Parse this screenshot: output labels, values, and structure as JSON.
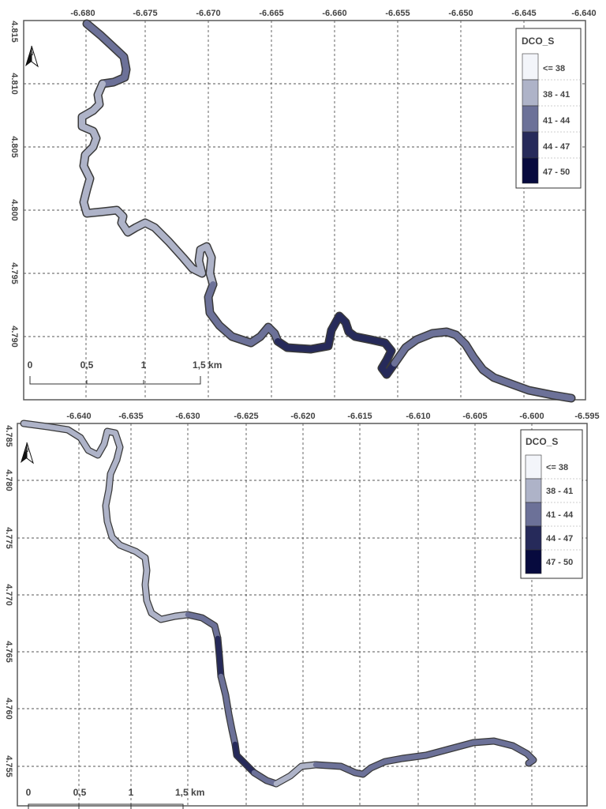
{
  "colors": {
    "frame": "#5a5a5a",
    "grid": "#555555",
    "river_outline": "#3a3a3a",
    "classes": [
      "#f3f5fa",
      "#aeb3c8",
      "#6c7198",
      "#262a5a",
      "#070a3e"
    ]
  },
  "maps": [
    {
      "x_ticks": [
        "-6.680",
        "-6.675",
        "-6.670",
        "-6.665",
        "-6.660",
        "-6.655",
        "-6.650",
        "-6.645",
        "-6.640"
      ],
      "y_ticks": [
        "4.815",
        "4.810",
        "4.805",
        "4.800",
        "4.795",
        "4.790"
      ],
      "north_icon": "north-arrow-icon",
      "north_label": "N",
      "scale_bar": {
        "labels": [
          "0",
          "0,5",
          "1",
          "1,5 km"
        ]
      },
      "legend": {
        "title": "DCO_S",
        "items": [
          {
            "label": "<= 38",
            "color": "#f3f5fa"
          },
          {
            "label": "38 - 41",
            "color": "#aeb3c8"
          },
          {
            "label": "41 - 44",
            "color": "#6c7198"
          },
          {
            "label": "44 - 47",
            "color": "#262a5a"
          },
          {
            "label": "47 - 50",
            "color": "#070a3e"
          }
        ]
      },
      "river_segments": [
        {
          "class": 2,
          "points": [
            [
              110,
              30
            ],
            [
              128,
              45
            ],
            [
              142,
              58
            ],
            [
              157,
              72
            ],
            [
              160,
              88
            ],
            [
              158,
              98
            ],
            [
              144,
              104
            ],
            [
              130,
              106
            ]
          ]
        },
        {
          "class": 1,
          "points": [
            [
              130,
              106
            ],
            [
              124,
              120
            ],
            [
              126,
              132
            ],
            [
              118,
              140
            ],
            [
              104,
              148
            ],
            [
              104,
              160
            ],
            [
              118,
              166
            ],
            [
              122,
              175
            ],
            [
              118,
              186
            ],
            [
              108,
              196
            ],
            [
              106,
              210
            ],
            [
              114,
              226
            ],
            [
              110,
              240
            ],
            [
              106,
              256
            ],
            [
              110,
              270
            ],
            [
              130,
              268
            ],
            [
              148,
              266
            ],
            [
              156,
              274
            ],
            [
              154,
              282
            ],
            [
              162,
              294
            ],
            [
              172,
              288
            ],
            [
              184,
              282
            ],
            [
              196,
              288
            ],
            [
              214,
              306
            ],
            [
              232,
              326
            ],
            [
              244,
              340
            ],
            [
              256,
              346
            ],
            [
              252,
              330
            ],
            [
              254,
              316
            ],
            [
              262,
              312
            ],
            [
              268,
              326
            ],
            [
              266,
              346
            ],
            [
              270,
              360
            ]
          ]
        },
        {
          "class": 2,
          "points": [
            [
              270,
              360
            ],
            [
              264,
              376
            ],
            [
              266,
              396
            ],
            [
              278,
              412
            ],
            [
              294,
              426
            ],
            [
              318,
              434
            ],
            [
              330,
              426
            ],
            [
              340,
              414
            ],
            [
              348,
              422
            ],
            [
              352,
              432
            ]
          ]
        },
        {
          "class": 3,
          "points": [
            [
              352,
              432
            ],
            [
              364,
              440
            ],
            [
              394,
              442
            ],
            [
              416,
              438
            ],
            [
              420,
              418
            ],
            [
              430,
              400
            ],
            [
              438,
              408
            ],
            [
              442,
              420
            ],
            [
              450,
              426
            ],
            [
              470,
              430
            ],
            [
              488,
              434
            ],
            [
              496,
              444
            ],
            [
              490,
              456
            ],
            [
              484,
              466
            ],
            [
              490,
              474
            ],
            [
              500,
              460
            ]
          ]
        },
        {
          "class": 2,
          "points": [
            [
              500,
              460
            ],
            [
              514,
              440
            ],
            [
              528,
              430
            ],
            [
              548,
              422
            ],
            [
              566,
              420
            ],
            [
              578,
              424
            ],
            [
              590,
              436
            ],
            [
              600,
              452
            ],
            [
              612,
              468
            ],
            [
              626,
              478
            ],
            [
              648,
              486
            ],
            [
              670,
              494
            ],
            [
              700,
              500
            ],
            [
              724,
              504
            ]
          ]
        }
      ]
    },
    {
      "x_ticks": [
        "-6.640",
        "-6.635",
        "-6.630",
        "-6.625",
        "-6.620",
        "-6.615",
        "-6.610",
        "-6.605",
        "-6.600",
        "-6.595"
      ],
      "y_ticks": [
        "4.785",
        "4.780",
        "4.775",
        "4.770",
        "4.765",
        "4.760",
        "4.755"
      ],
      "north_icon": "north-arrow-icon",
      "north_label": "N",
      "scale_bar": {
        "labels": [
          "0",
          "0,5",
          "1",
          "1,5 km"
        ]
      },
      "legend": {
        "title": "DCO_S",
        "items": [
          {
            "label": "<= 38",
            "color": "#f3f5fa"
          },
          {
            "label": "38 - 41",
            "color": "#aeb3c8"
          },
          {
            "label": "41 - 44",
            "color": "#6c7198"
          },
          {
            "label": "44 - 47",
            "color": "#262a5a"
          },
          {
            "label": "47 - 50",
            "color": "#070a3e"
          }
        ]
      },
      "river_segments": [
        {
          "class": 1,
          "points": [
            [
              30,
              536
            ],
            [
              60,
              540
            ],
            [
              86,
              544
            ],
            [
              102,
              554
            ],
            [
              112,
              570
            ],
            [
              124,
              576
            ],
            [
              132,
              562
            ],
            [
              136,
              546
            ],
            [
              146,
              548
            ],
            [
              152,
              566
            ],
            [
              148,
              582
            ]
          ]
        },
        {
          "class": 1,
          "points": [
            [
              148,
              582
            ],
            [
              140,
              600
            ],
            [
              138,
              620
            ],
            [
              134,
              640
            ],
            [
              136,
              660
            ],
            [
              142,
              680
            ],
            [
              152,
              690
            ],
            [
              172,
              698
            ],
            [
              184,
              706
            ],
            [
              186,
              722
            ],
            [
              184,
              740
            ],
            [
              186,
              760
            ],
            [
              192,
              776
            ],
            [
              204,
              784
            ],
            [
              222,
              780
            ],
            [
              238,
              778
            ]
          ]
        },
        {
          "class": 2,
          "points": [
            [
              238,
              778
            ],
            [
              256,
              782
            ],
            [
              272,
              792
            ],
            [
              276,
              808
            ]
          ]
        },
        {
          "class": 3,
          "points": [
            [
              276,
              808
            ],
            [
              278,
              830
            ],
            [
              280,
              856
            ]
          ]
        },
        {
          "class": 2,
          "points": [
            [
              280,
              856
            ],
            [
              286,
              880
            ],
            [
              290,
              904
            ],
            [
              294,
              924
            ],
            [
              298,
              942
            ]
          ]
        },
        {
          "class": 3,
          "points": [
            [
              298,
              942
            ],
            [
              300,
              956
            ],
            [
              312,
              968
            ],
            [
              322,
              978
            ]
          ]
        },
        {
          "class": 2,
          "points": [
            [
              322,
              978
            ],
            [
              338,
              988
            ],
            [
              350,
              992
            ]
          ]
        },
        {
          "class": 1,
          "points": [
            [
              350,
              992
            ],
            [
              368,
              982
            ],
            [
              382,
              970
            ],
            [
              400,
              968
            ]
          ]
        },
        {
          "class": 2,
          "points": [
            [
              400,
              968
            ],
            [
              432,
              970
            ],
            [
              450,
              978
            ],
            [
              460,
              980
            ],
            [
              470,
              972
            ],
            [
              488,
              964
            ],
            [
              510,
              960
            ],
            [
              540,
              956
            ],
            [
              570,
              948
            ],
            [
              600,
              940
            ],
            [
              626,
              938
            ],
            [
              650,
              944
            ],
            [
              668,
              954
            ],
            [
              676,
              962
            ],
            [
              670,
              966
            ]
          ]
        }
      ]
    }
  ]
}
